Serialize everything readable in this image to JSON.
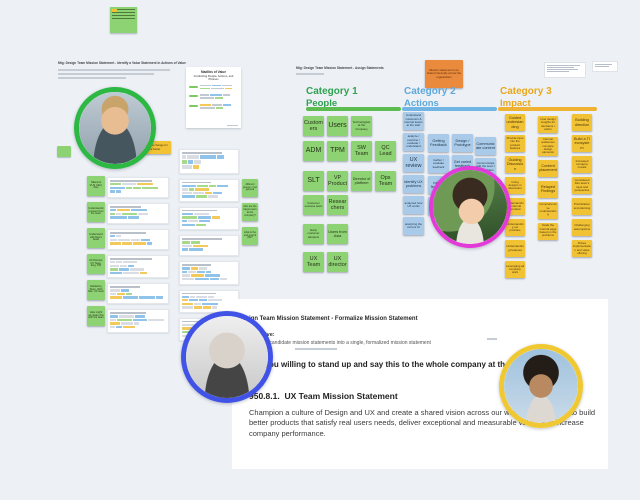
{
  "boards": {
    "left_board_title": "Mtg: Design Team Mission Statement - Identify a Value Statement in Actions of Value",
    "assign_board_title": "Mtg: Design Team Mission Statement - Assign Statements",
    "assign_board_sub": "Who: Superset"
  },
  "madlibs_doc": {
    "title": "Madlibs of Value",
    "subtitle": "Combining People, Actions, and Phrases"
  },
  "orange_note": "Mission statement to be shared internally across the organization",
  "yellow_wide_note": "Time for a change for the better",
  "left_cluster": {
    "green_column_notes": [
      "Talked to VLSI CEO, Dan",
      "Understanding issues from the team",
      "Understand with Dan's belief",
      "UX Director, UX Team, Eng, PM",
      "Marketing Team, Web Site, UX team",
      "How might we share this with the team"
    ],
    "side_green_notes": [
      "different groups = too general",
      "who are the target users at the company?",
      "what is the end goal of this?"
    ]
  },
  "categories": [
    {
      "label": "Category 1",
      "sublabel": "People",
      "text_color": "#2fa14f",
      "bar_color": "#5cbc4f",
      "rows": [
        [
          "Customers",
          "Users",
          "Technologists at the Company"
        ],
        [
          "ADM",
          "TPM",
          "SW Team",
          "QC Lead"
        ],
        [
          "SLT",
          "VP Product",
          "Director of platform",
          "Ops Team"
        ],
        [
          "Customer success team",
          "Researchers"
        ],
        [
          "Early customer adopters",
          "Users from Asia"
        ],
        [
          "UX Team",
          "UX director"
        ]
      ]
    },
    {
      "label": "Category 2",
      "sublabel": "Actions",
      "text_color": "#5fa8db",
      "bar_color": "#70b5e3",
      "columns": [
        [
          "Understand customers & internal teams at the start",
          "analyze / examine / evaluate / understand",
          "UX review",
          "identify UX problems",
          "analyzed how UX works",
          "analyzing the current UI"
        ],
        [
          "Getting Feedback",
          "Gather / evaluate feedback",
          "robust feedback",
          "Context included"
        ],
        [
          "Design / Prototype",
          "Get varied feedback"
        ],
        [
          "Communicate content",
          "Communicate with the team / stakeholders",
          "Share with leadership"
        ]
      ]
    },
    {
      "label": "Category 3",
      "sublabel": "Impact",
      "text_color": "#eaa718",
      "bar_color": "#f0b232",
      "columns": [
        [
          "Guided understanding",
          "Provide input into the product features",
          "Guiding Discussion",
          "Using designs in discussion",
          "Understanding internal formation",
          "Understanding our priorities",
          "Understanding Features",
          "Leveraging all company work"
        ],
        [
          "User design insights for decisions / action",
          "Internal audiences compare design elements",
          "Content placement",
          "Relayed Findings",
          "Comprehensive understanding",
          "Scale the internal page based on the problems"
        ],
        [
          "Building direction",
          "Build a TI ecosystem",
          "Increased comapny morale",
          "Considered Dev team's input and perspective",
          "Prioritization and planning",
          "Challenging assumptions",
          "Drives implementation and value offering"
        ]
      ]
    }
  ],
  "mission_doc": {
    "heading": "Design Team Mission Statement - Formalize Mission Statement",
    "objective_label": "Objective:",
    "objective_text": "Combine candidate mission statements into a single, formalized mission statement",
    "question": "Are you willing to stand up and say this to the whole company at the",
    "statement_number": "950.8.1.",
    "statement_title": "UX Team Mission Statement",
    "statement_body": "Champion a culture of Design and UX and create a shared vision across our whole organization, to build better products that satisfy real users needs, deliver exceptional and measurable value, and increase company performance."
  },
  "avatars": [
    {
      "name": "green-participant",
      "border": "#2db843"
    },
    {
      "name": "magenta-participant",
      "border": "#e23ad7"
    },
    {
      "name": "blue-participant",
      "border": "#4153e6"
    },
    {
      "name": "yellow-participant",
      "border": "#efc832"
    }
  ]
}
